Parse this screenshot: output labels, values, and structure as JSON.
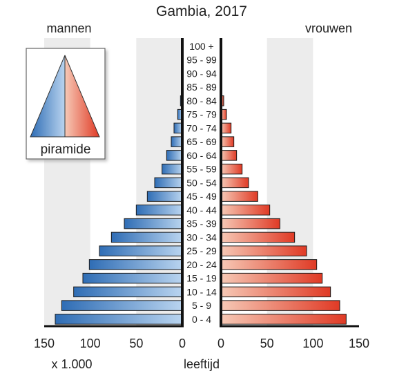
{
  "chart_data": {
    "type": "bar",
    "title": "Gambia, 2017",
    "left_label": "mannen",
    "right_label": "vrouwen",
    "center_label": "leeftijd",
    "unit_label": "x 1.000",
    "inset_label": "piramide",
    "categories": [
      "100 +",
      "95 - 99",
      "90 - 94",
      "85 - 89",
      "80 - 84",
      "75 - 79",
      "70 - 74",
      "65 - 69",
      "60 - 64",
      "55 - 59",
      "50 - 54",
      "45 - 49",
      "40 - 44",
      "35 - 39",
      "30 - 34",
      "25 - 29",
      "20 - 24",
      "15 - 19",
      "10 - 14",
      "5 - 9",
      "0 - 4"
    ],
    "series": [
      {
        "name": "mannen",
        "values": [
          0,
          0,
          0,
          1,
          2,
          5,
          9,
          12,
          17,
          22,
          30,
          38,
          50,
          63,
          77,
          90,
          101,
          108,
          118,
          131,
          138
        ]
      },
      {
        "name": "vrouwen",
        "values": [
          0,
          0,
          0,
          1,
          3,
          6,
          11,
          14,
          17,
          23,
          30,
          40,
          53,
          64,
          80,
          93,
          104,
          110,
          119,
          129,
          136
        ]
      }
    ],
    "xlim": [
      0,
      150
    ],
    "xticks_left": [
      "150",
      "100",
      "50",
      "0"
    ],
    "xticks_right": [
      "0",
      "50",
      "100",
      "150"
    ],
    "grid": true,
    "colors": {
      "male_dark": "#2f6db5",
      "male_light": "#b9d4ef",
      "female_dark": "#e03a25",
      "female_light": "#f6c9b6",
      "grid_band": "#ececec",
      "axis": "#111111"
    }
  }
}
